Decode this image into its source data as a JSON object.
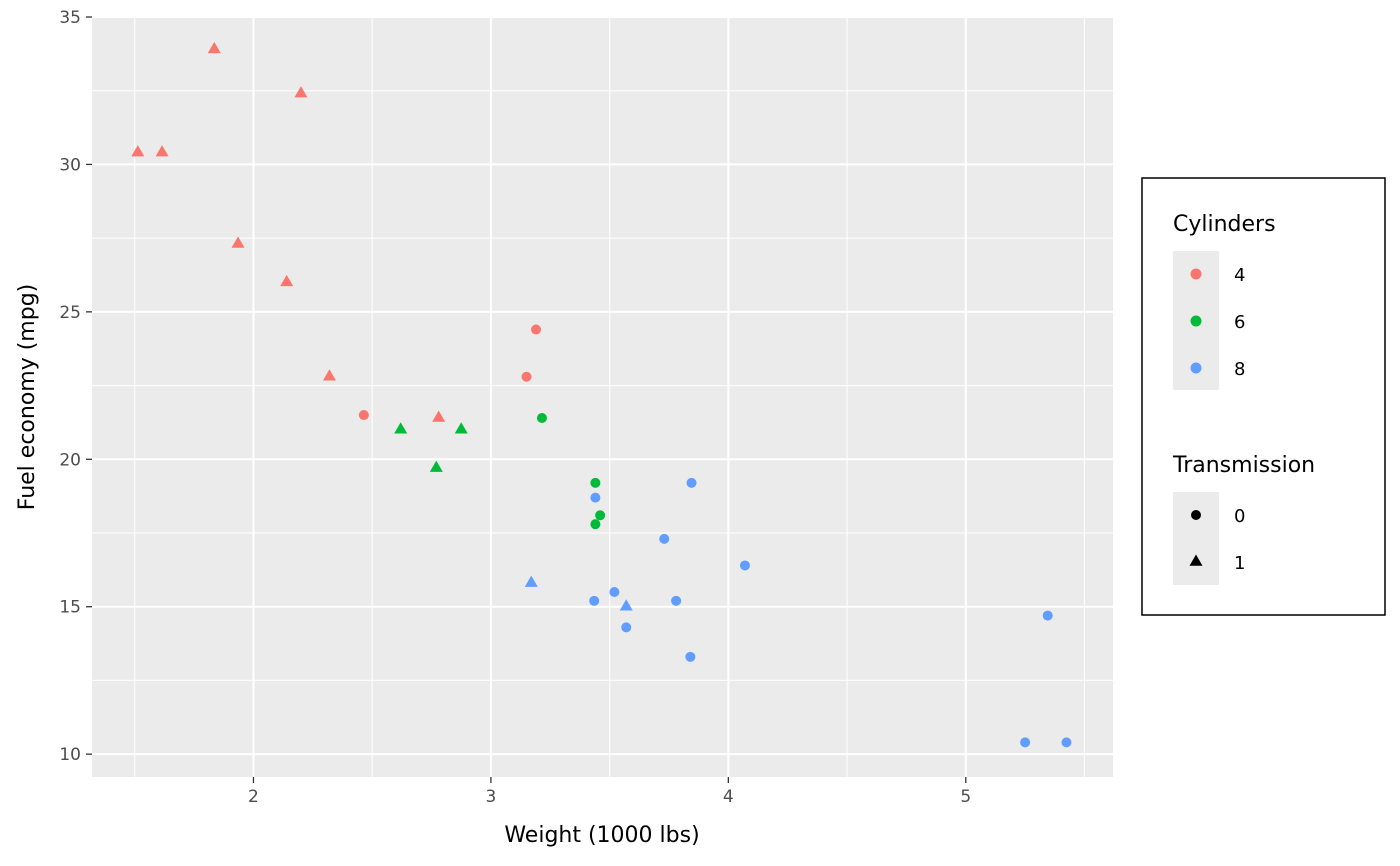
{
  "chart_data": {
    "type": "scatter",
    "xlabel": "Weight (1000 lbs)",
    "ylabel": "Fuel economy (mpg)",
    "xlim": [
      1.32,
      5.62
    ],
    "ylim": [
      9.225,
      35.0
    ],
    "x_ticks": [
      2,
      3,
      4,
      5
    ],
    "y_ticks": [
      10,
      15,
      20,
      25,
      30,
      35
    ],
    "grid": true,
    "colors": {
      "4": "#F8766D",
      "6": "#00BA38",
      "8": "#619CFF"
    },
    "legend": {
      "placement": "right",
      "color": {
        "title": "Cylinders",
        "entries": [
          "4",
          "6",
          "8"
        ]
      },
      "shape": {
        "title": "Transmission",
        "entries": [
          "0",
          "1"
        ],
        "shapes": [
          "circle",
          "triangle"
        ]
      }
    },
    "points": [
      {
        "x": 2.62,
        "y": 21.0,
        "cyl": "6",
        "am": "1"
      },
      {
        "x": 2.875,
        "y": 21.0,
        "cyl": "6",
        "am": "1"
      },
      {
        "x": 2.32,
        "y": 22.8,
        "cyl": "4",
        "am": "1"
      },
      {
        "x": 3.215,
        "y": 21.4,
        "cyl": "6",
        "am": "0"
      },
      {
        "x": 3.44,
        "y": 18.7,
        "cyl": "8",
        "am": "0"
      },
      {
        "x": 3.46,
        "y": 18.1,
        "cyl": "6",
        "am": "0"
      },
      {
        "x": 3.57,
        "y": 14.3,
        "cyl": "8",
        "am": "0"
      },
      {
        "x": 3.19,
        "y": 24.4,
        "cyl": "4",
        "am": "0"
      },
      {
        "x": 3.15,
        "y": 22.8,
        "cyl": "4",
        "am": "0"
      },
      {
        "x": 3.44,
        "y": 19.2,
        "cyl": "6",
        "am": "0"
      },
      {
        "x": 3.44,
        "y": 17.8,
        "cyl": "6",
        "am": "0"
      },
      {
        "x": 4.07,
        "y": 16.4,
        "cyl": "8",
        "am": "0"
      },
      {
        "x": 3.73,
        "y": 17.3,
        "cyl": "8",
        "am": "0"
      },
      {
        "x": 3.78,
        "y": 15.2,
        "cyl": "8",
        "am": "0"
      },
      {
        "x": 5.25,
        "y": 10.4,
        "cyl": "8",
        "am": "0"
      },
      {
        "x": 5.424,
        "y": 10.4,
        "cyl": "8",
        "am": "0"
      },
      {
        "x": 5.345,
        "y": 14.7,
        "cyl": "8",
        "am": "0"
      },
      {
        "x": 2.2,
        "y": 32.4,
        "cyl": "4",
        "am": "1"
      },
      {
        "x": 1.615,
        "y": 30.4,
        "cyl": "4",
        "am": "1"
      },
      {
        "x": 1.835,
        "y": 33.9,
        "cyl": "4",
        "am": "1"
      },
      {
        "x": 2.465,
        "y": 21.5,
        "cyl": "4",
        "am": "0"
      },
      {
        "x": 3.52,
        "y": 15.5,
        "cyl": "8",
        "am": "0"
      },
      {
        "x": 3.435,
        "y": 15.2,
        "cyl": "8",
        "am": "0"
      },
      {
        "x": 3.84,
        "y": 13.3,
        "cyl": "8",
        "am": "0"
      },
      {
        "x": 3.845,
        "y": 19.2,
        "cyl": "8",
        "am": "0"
      },
      {
        "x": 1.935,
        "y": 27.3,
        "cyl": "4",
        "am": "1"
      },
      {
        "x": 2.14,
        "y": 26.0,
        "cyl": "4",
        "am": "1"
      },
      {
        "x": 1.513,
        "y": 30.4,
        "cyl": "4",
        "am": "1"
      },
      {
        "x": 3.17,
        "y": 15.8,
        "cyl": "8",
        "am": "1"
      },
      {
        "x": 2.77,
        "y": 19.7,
        "cyl": "6",
        "am": "1"
      },
      {
        "x": 3.57,
        "y": 15.0,
        "cyl": "8",
        "am": "1"
      },
      {
        "x": 2.78,
        "y": 21.4,
        "cyl": "4",
        "am": "1"
      }
    ]
  }
}
